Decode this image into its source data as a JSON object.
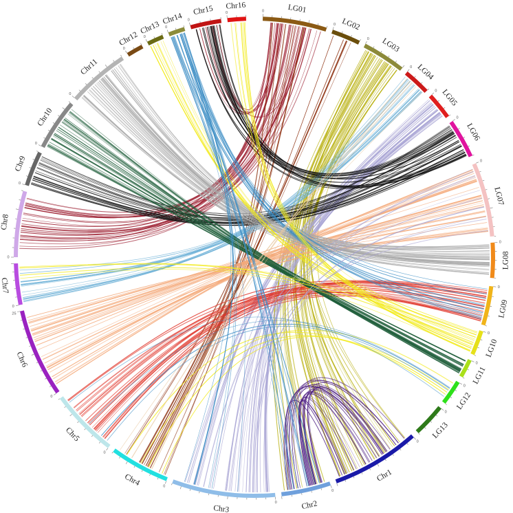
{
  "chart_data": {
    "type": "circos-synteny",
    "segments": [
      {
        "id": "LG01",
        "label": "LG01",
        "color": "#8B5A14"
      },
      {
        "id": "LG02",
        "label": "LG02",
        "color": "#6B4E0C"
      },
      {
        "id": "LG03",
        "label": "LG03",
        "color": "#8C8A3A"
      },
      {
        "id": "LG04",
        "label": "LG04",
        "color": "#CC1A1A"
      },
      {
        "id": "LG05",
        "label": "LG05",
        "color": "#E01E1E"
      },
      {
        "id": "LG06",
        "label": "LG06",
        "color": "#E0149E"
      },
      {
        "id": "LG07",
        "label": "LG07",
        "color": "#F4C2C2"
      },
      {
        "id": "LG08",
        "label": "LG08",
        "color": "#F08A1A"
      },
      {
        "id": "LG09",
        "label": "LG09",
        "color": "#F0B41A"
      },
      {
        "id": "LG10",
        "label": "LG10",
        "color": "#E6E01A"
      },
      {
        "id": "LG11",
        "label": "LG11",
        "color": "#AAE01A"
      },
      {
        "id": "LG12",
        "label": "LG12",
        "color": "#2EE01A"
      },
      {
        "id": "LG13",
        "label": "LG13",
        "color": "#2E7A1A"
      },
      {
        "id": "Chr1",
        "label": "Chr1",
        "color": "#1A1AA8"
      },
      {
        "id": "Chr2",
        "label": "Chr2",
        "color": "#6FA0DC"
      },
      {
        "id": "Chr3",
        "label": "Chr3",
        "color": "#8FBDE8"
      },
      {
        "id": "Chr4",
        "label": "Chr4",
        "color": "#22E0E0"
      },
      {
        "id": "Chr5",
        "label": "Chr5",
        "color": "#BDE6EA"
      },
      {
        "id": "Chr6",
        "label": "Chr6",
        "color": "#9A22C0"
      },
      {
        "id": "Chr7",
        "label": "Chr7",
        "color": "#B84CE0"
      },
      {
        "id": "Chr8",
        "label": "Chr8",
        "color": "#CFA8E8"
      },
      {
        "id": "Chr9",
        "label": "Chr9",
        "color": "#666666"
      },
      {
        "id": "Chr10",
        "label": "Chr10",
        "color": "#888888"
      },
      {
        "id": "Chr11",
        "label": "Chr11",
        "color": "#B4B4B4"
      },
      {
        "id": "Chr12",
        "label": "Chr12",
        "color": "#7A4A14"
      },
      {
        "id": "Chr13",
        "label": "Chr13",
        "color": "#6B6B14"
      },
      {
        "id": "Chr14",
        "label": "Chr14",
        "color": "#8C8C3A"
      },
      {
        "id": "Chr15",
        "label": "Chr15",
        "color": "#C01414"
      },
      {
        "id": "Chr16",
        "label": "Chr16",
        "color": "#E01414"
      }
    ],
    "tick_labels": [
      "0",
      "25"
    ],
    "links": [
      {
        "from": "LG01",
        "to": "Chr8",
        "color": "#9B1C2E",
        "count": 30
      },
      {
        "from": "LG01",
        "to": "Chr4",
        "color": "#8B2E0C",
        "count": 10
      },
      {
        "from": "LG01",
        "to": "Chr15",
        "color": "#9B1C2E",
        "count": 8
      },
      {
        "from": "LG02",
        "to": "Chr4",
        "color": "#8B2E0C",
        "count": 6
      },
      {
        "from": "LG03",
        "to": "Chr1",
        "color": "#B8B010",
        "count": 30
      },
      {
        "from": "LG03",
        "to": "Chr2",
        "color": "#B8B010",
        "count": 12
      },
      {
        "from": "LG04",
        "to": "Chr7",
        "color": "#6AAFD6",
        "count": 18
      },
      {
        "from": "LG05",
        "to": "Chr3",
        "color": "#A8A4D4",
        "count": 30
      },
      {
        "from": "LG06",
        "to": "Chr15",
        "color": "#111111",
        "count": 22
      },
      {
        "from": "LG06",
        "to": "Chr9",
        "color": "#111111",
        "count": 22
      },
      {
        "from": "LG07",
        "to": "Chr6",
        "color": "#F4A878",
        "count": 40
      },
      {
        "from": "LG08",
        "to": "Chr11",
        "color": "#A8A8A8",
        "count": 40
      },
      {
        "from": "LG09",
        "to": "Chr5",
        "color": "#E0352A",
        "count": 30
      },
      {
        "from": "LG09",
        "to": "Chr14",
        "color": "#3A8CC4",
        "count": 12
      },
      {
        "from": "LG10",
        "to": "Chr13",
        "color": "#F2EA1A",
        "count": 10
      },
      {
        "from": "LG10",
        "to": "Chr16",
        "color": "#F2EA1A",
        "count": 8
      },
      {
        "from": "LG11",
        "to": "Chr10",
        "color": "#1F5E3A",
        "count": 30
      },
      {
        "from": "LG12",
        "to": "Chr4",
        "color": "#F2EA1A",
        "count": 4
      },
      {
        "from": "Chr1",
        "to": "Chr2",
        "color": "#4A1A80",
        "count": 30
      },
      {
        "from": "Chr2",
        "to": "Chr14",
        "color": "#3A8CC4",
        "count": 8
      },
      {
        "from": "Chr3",
        "to": "Chr14",
        "color": "#3A8CC4",
        "count": 6
      },
      {
        "from": "Chr3",
        "to": "LG07",
        "color": "#A8A4D4",
        "count": 10
      },
      {
        "from": "Chr5",
        "to": "LG12",
        "color": "#3A8CC4",
        "count": 4
      },
      {
        "from": "Chr7",
        "to": "LG10",
        "color": "#F2EA1A",
        "count": 4
      },
      {
        "from": "Chr4",
        "to": "LG04",
        "color": "#E8C8A0",
        "count": 5
      }
    ]
  }
}
